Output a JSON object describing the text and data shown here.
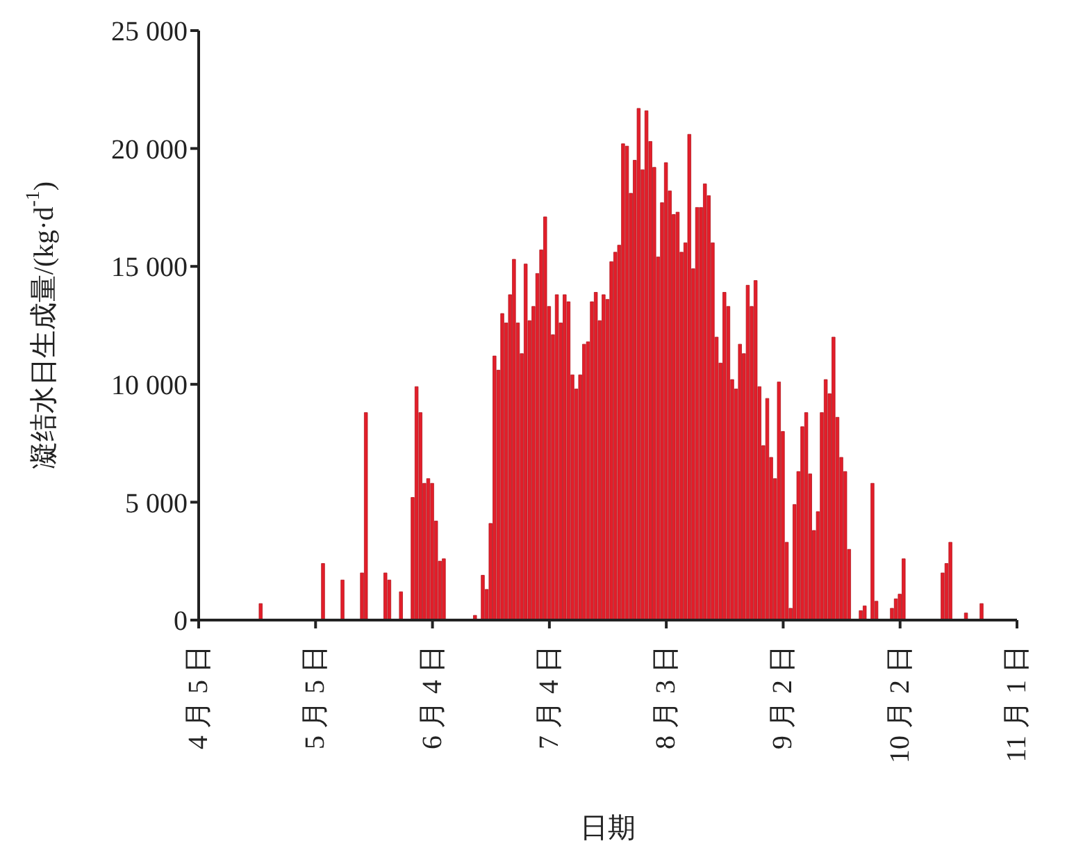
{
  "chart_data": {
    "type": "bar",
    "xlabel": "日期",
    "ylabel": "凝结水日生成量/(kg·d$^{-1}$)",
    "color": "#e31e2a",
    "x": [
      "--04-21",
      "--05-07",
      "--05-12",
      "--05-17",
      "--05-18",
      "--05-23",
      "--05-24",
      "--05-27",
      "--05-30",
      "--05-31",
      "--06-01",
      "--06-02",
      "--06-03",
      "--06-04",
      "--06-05",
      "--06-06",
      "--06-07",
      "--06-15",
      "--06-17",
      "--06-18",
      "--06-19",
      "--06-20",
      "--06-21",
      "--06-22",
      "--06-23",
      "--06-24",
      "--06-25",
      "--06-26",
      "--06-27",
      "--06-28",
      "--06-29",
      "--06-30",
      "--07-01",
      "--07-02",
      "--07-03",
      "--07-04",
      "--07-05",
      "--07-06",
      "--07-07",
      "--07-08",
      "--07-09",
      "--07-10",
      "--07-11",
      "--07-12",
      "--07-13",
      "--07-14",
      "--07-15",
      "--07-16",
      "--07-17",
      "--07-18",
      "--07-19",
      "--07-20",
      "--07-21",
      "--07-22",
      "--07-23",
      "--07-24",
      "--07-25",
      "--07-26",
      "--07-27",
      "--07-28",
      "--07-29",
      "--07-30",
      "--07-31",
      "--08-01",
      "--08-02",
      "--08-03",
      "--08-04",
      "--08-05",
      "--08-06",
      "--08-07",
      "--08-08",
      "--08-09",
      "--08-10",
      "--08-11",
      "--08-12",
      "--08-13",
      "--08-14",
      "--08-15",
      "--08-16",
      "--08-17",
      "--08-18",
      "--08-19",
      "--08-20",
      "--08-21",
      "--08-22",
      "--08-23",
      "--08-24",
      "--08-25",
      "--08-26",
      "--08-27",
      "--08-28",
      "--08-29",
      "--08-30",
      "--08-31",
      "--09-01",
      "--09-02",
      "--09-03",
      "--09-04",
      "--09-05",
      "--09-06",
      "--09-07",
      "--09-08",
      "--09-09",
      "--09-10",
      "--09-11",
      "--09-12",
      "--09-13",
      "--09-14",
      "--09-15",
      "--09-16",
      "--09-17",
      "--09-18",
      "--09-19",
      "--09-22",
      "--09-23",
      "--09-25",
      "--09-26",
      "--09-30",
      "--10-01",
      "--10-02",
      "--10-03",
      "--10-13",
      "--10-14",
      "--10-15",
      "--10-19",
      "--10-23"
    ],
    "values": [
      700,
      2400,
      1700,
      2000,
      8800,
      2000,
      1700,
      1200,
      5200,
      9900,
      8800,
      5800,
      6000,
      5800,
      4200,
      2500,
      2600,
      200,
      1900,
      1300,
      4100,
      11200,
      10600,
      13000,
      12600,
      13800,
      15300,
      12600,
      11300,
      15100,
      12700,
      13300,
      14700,
      15700,
      17100,
      13300,
      12100,
      13800,
      12600,
      13800,
      13500,
      10400,
      9800,
      10400,
      11700,
      11800,
      13500,
      13900,
      12700,
      13800,
      13600,
      15200,
      15600,
      15900,
      20200,
      20100,
      18100,
      19500,
      21700,
      19100,
      21600,
      20300,
      19200,
      15400,
      17700,
      19400,
      18200,
      17200,
      17300,
      15600,
      16000,
      20600,
      14900,
      17500,
      17500,
      18500,
      18000,
      16000,
      12000,
      10900,
      13900,
      13300,
      10200,
      9800,
      11700,
      11300,
      14200,
      13300,
      14400,
      9900,
      7400,
      9400,
      6900,
      6000,
      10100,
      8000,
      3300,
      500,
      4900,
      6300,
      8200,
      8800,
      6200,
      3800,
      4600,
      8800,
      10200,
      9600,
      12000,
      8600,
      6900,
      6300,
      3000,
      400,
      600,
      5800,
      800,
      500,
      900,
      1100,
      2600,
      2000,
      2400,
      3300,
      300,
      700
    ],
    "xlim": [
      "--04-05",
      "--11-01"
    ],
    "xticks": [
      {
        "value": "--04-05",
        "label": "4 月 5 日"
      },
      {
        "value": "--05-05",
        "label": "5 月 5 日"
      },
      {
        "value": "--06-04",
        "label": "6 月 4 日"
      },
      {
        "value": "--07-04",
        "label": "7 月 4 日"
      },
      {
        "value": "--08-03",
        "label": "8 月 3 日"
      },
      {
        "value": "--09-02",
        "label": "9 月 2 日"
      },
      {
        "value": "--10-02",
        "label": "10 月 2 日"
      },
      {
        "value": "--11-01",
        "label": "11 月 1 日"
      }
    ],
    "ylim": [
      0,
      25000
    ],
    "yticks": [
      0,
      {
        "value": 5000,
        "label": "5 000"
      },
      {
        "value": 10000,
        "label": "10 000"
      },
      {
        "value": 15000,
        "label": "15 000"
      },
      {
        "value": 20000,
        "label": "20 000"
      },
      {
        "value": 25000,
        "label": "25 000"
      }
    ],
    "grid": false,
    "legend": false
  }
}
